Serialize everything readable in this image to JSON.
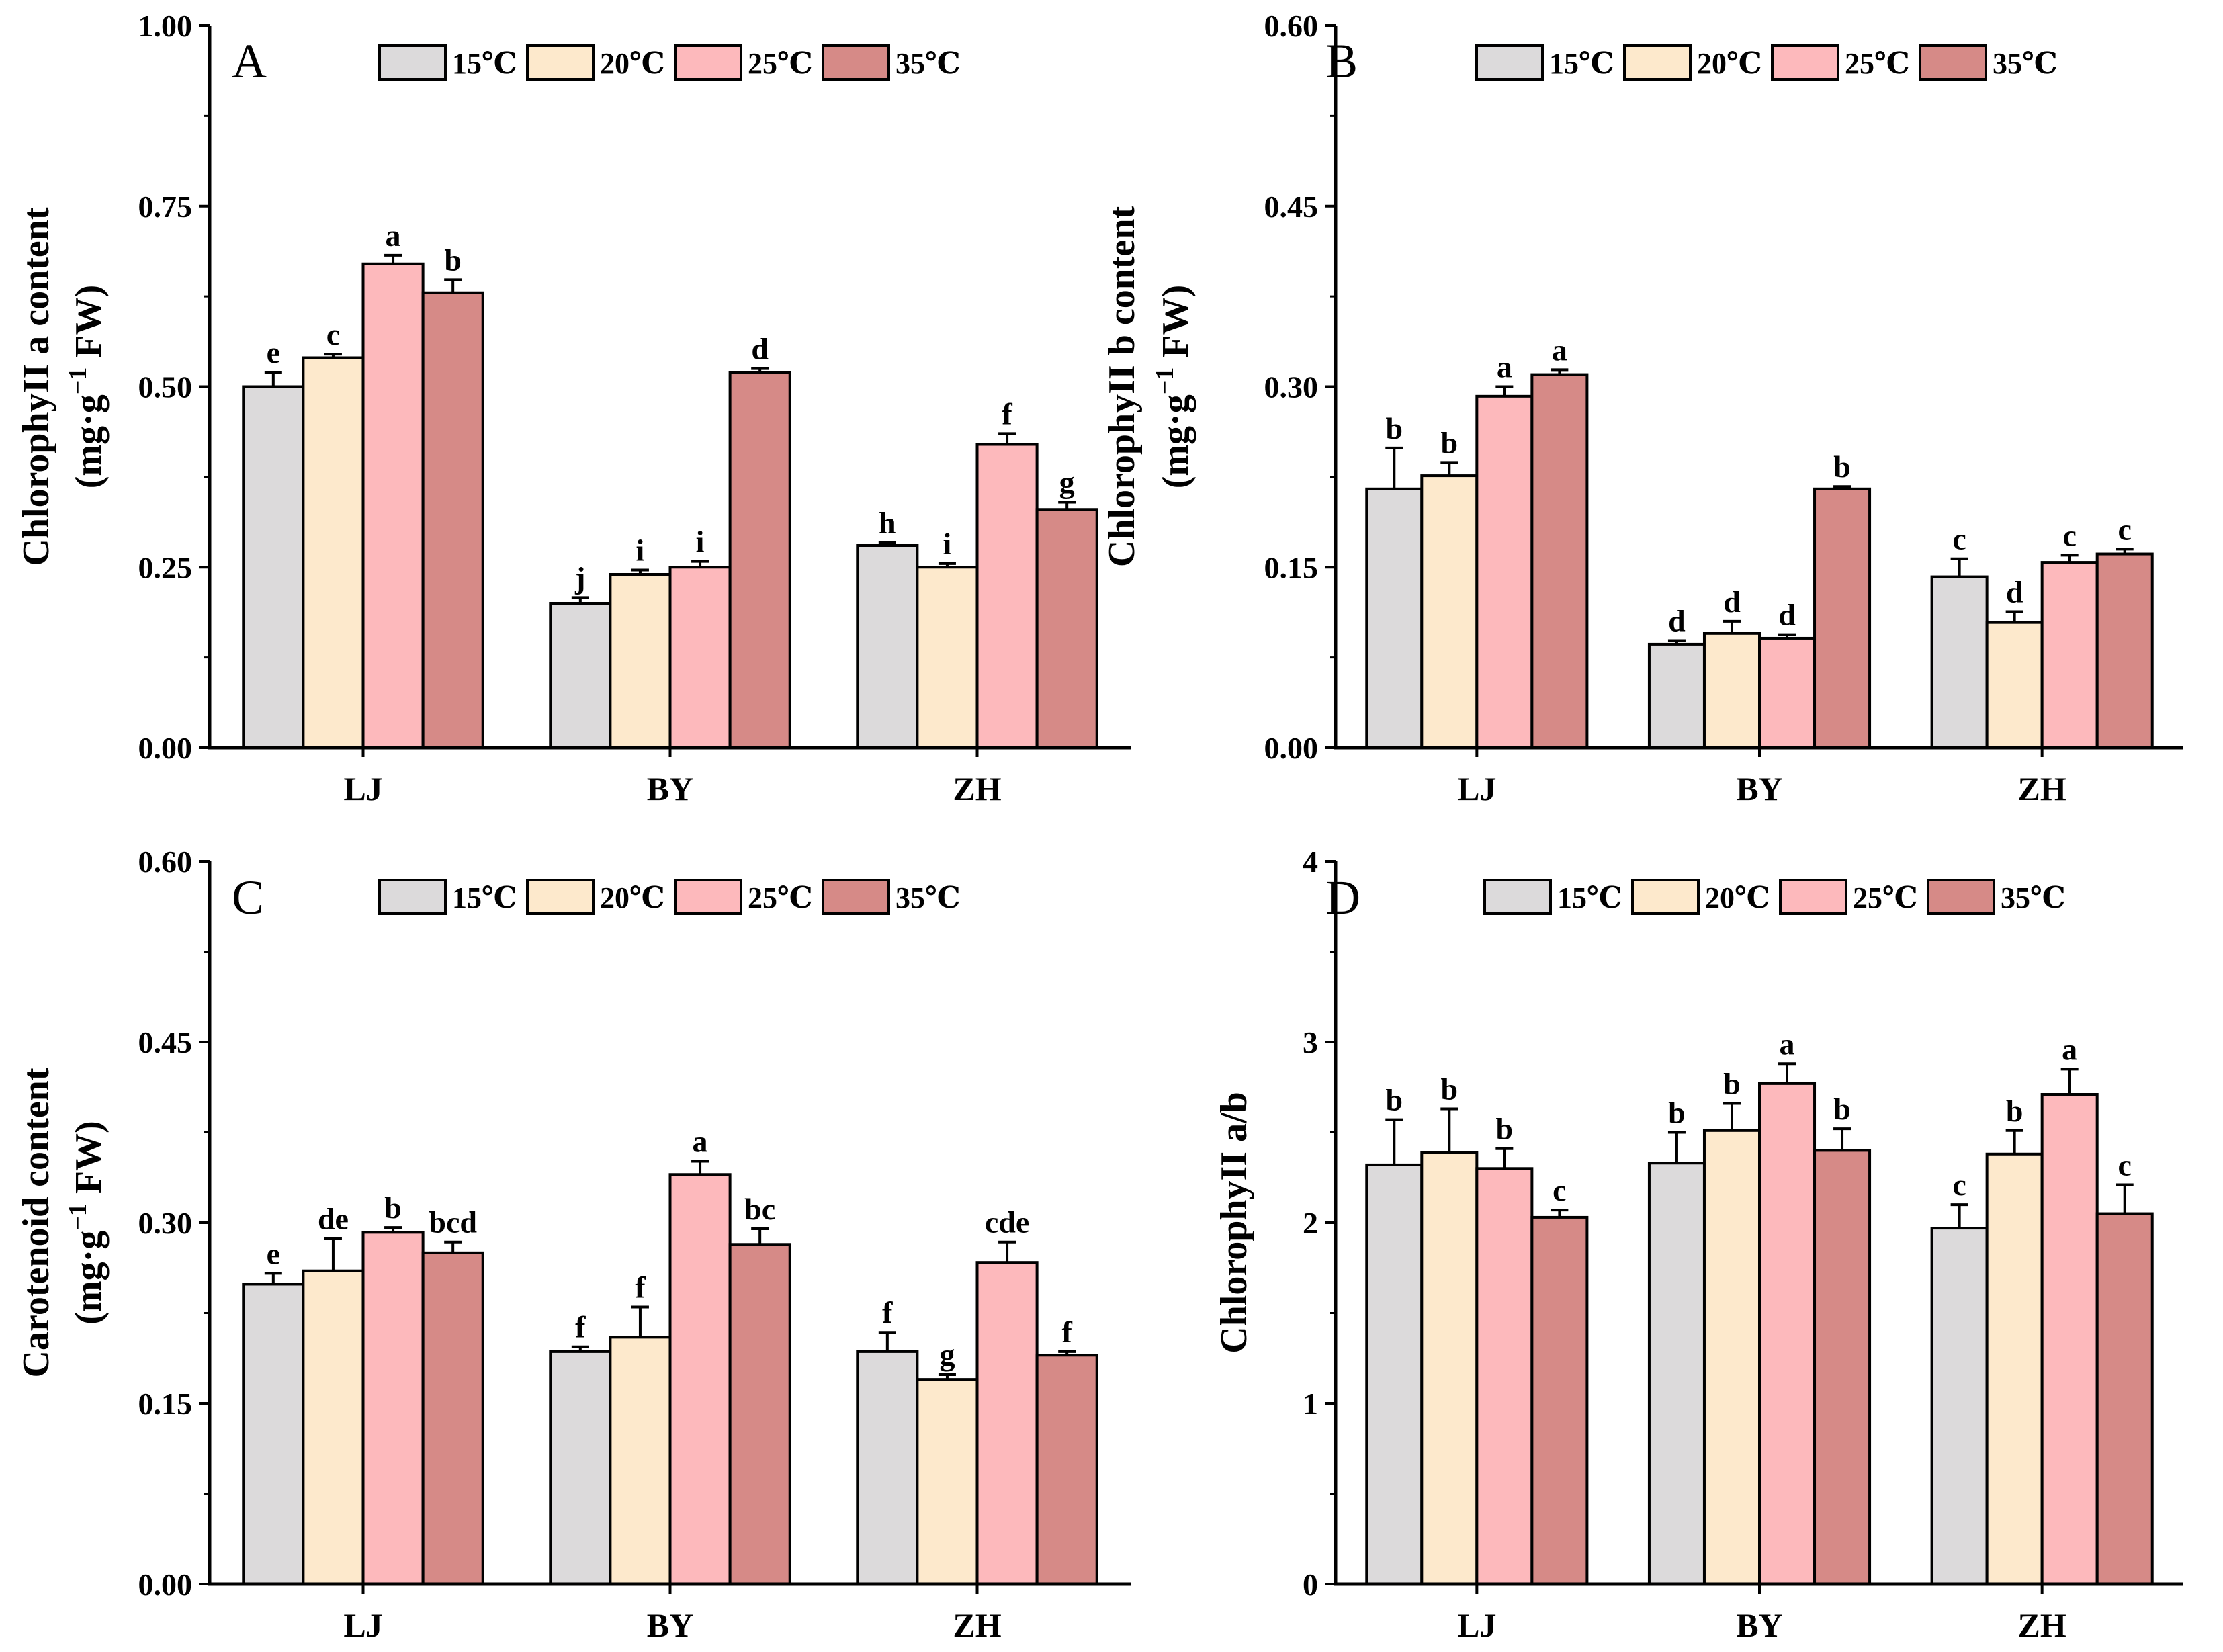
{
  "colors": [
    "#dcdadb",
    "#fde9cc",
    "#fdb9bc",
    "#d68a87"
  ],
  "chart_data": [
    {
      "type": "bar",
      "panel": "A",
      "ylabel_line1": "ChlorophyII a content",
      "ylabel_line2_prefix": "(mg·g",
      "ylabel_sup": "−1",
      "ylabel_line2_suffix": " FW)",
      "ylim": [
        0,
        1.0
      ],
      "yticks": [
        "0.00",
        "0.25",
        "0.50",
        "0.75",
        "1.00"
      ],
      "ytick_values": [
        0,
        0.25,
        0.5,
        0.75,
        1.0
      ],
      "categories": [
        "LJ",
        "BY",
        "ZH"
      ],
      "series": [
        {
          "name": "15℃",
          "values": [
            0.5,
            0.2,
            0.28
          ],
          "errors": [
            0.02,
            0.008,
            0.004
          ],
          "letters": [
            "e",
            "j",
            "h"
          ]
        },
        {
          "name": "20℃",
          "values": [
            0.54,
            0.24,
            0.25
          ],
          "errors": [
            0.005,
            0.006,
            0.005
          ],
          "letters": [
            "c",
            "i",
            "i"
          ]
        },
        {
          "name": "25℃",
          "values": [
            0.67,
            0.25,
            0.42
          ],
          "errors": [
            0.012,
            0.008,
            0.015
          ],
          "letters": [
            "a",
            "i",
            "f"
          ]
        },
        {
          "name": "35℃",
          "values": [
            0.63,
            0.52,
            0.33
          ],
          "errors": [
            0.018,
            0.005,
            0.01
          ],
          "letters": [
            "b",
            "d",
            "g"
          ]
        }
      ]
    },
    {
      "type": "bar",
      "panel": "B",
      "ylabel_line1": "ChlorophyII b content",
      "ylabel_line2_prefix": "(mg·g",
      "ylabel_sup": "−1",
      "ylabel_line2_suffix": " FW)",
      "ylim": [
        0,
        0.6
      ],
      "yticks": [
        "0.00",
        "0.15",
        "0.30",
        "0.45",
        "0.60"
      ],
      "ytick_values": [
        0,
        0.15,
        0.3,
        0.45,
        0.6
      ],
      "categories": [
        "LJ",
        "BY",
        "ZH"
      ],
      "series": [
        {
          "name": "15℃",
          "values": [
            0.215,
            0.086,
            0.142
          ],
          "errors": [
            0.034,
            0.003,
            0.015
          ],
          "letters": [
            "b",
            "d",
            "c"
          ]
        },
        {
          "name": "20℃",
          "values": [
            0.226,
            0.095,
            0.104
          ],
          "errors": [
            0.011,
            0.01,
            0.009
          ],
          "letters": [
            "b",
            "d",
            "d"
          ]
        },
        {
          "name": "25℃",
          "values": [
            0.292,
            0.091,
            0.154
          ],
          "errors": [
            0.008,
            0.003,
            0.006
          ],
          "letters": [
            "a",
            "d",
            "c"
          ]
        },
        {
          "name": "35℃",
          "values": [
            0.31,
            0.215,
            0.161
          ],
          "errors": [
            0.004,
            0.002,
            0.004
          ],
          "letters": [
            "a",
            "b",
            "c"
          ]
        }
      ]
    },
    {
      "type": "bar",
      "panel": "C",
      "ylabel_line1": "Carotenoid content",
      "ylabel_line2_prefix": "(mg·g",
      "ylabel_sup": "−1",
      "ylabel_line2_suffix": " FW)",
      "ylim": [
        0,
        0.6
      ],
      "yticks": [
        "0.00",
        "0.15",
        "0.30",
        "0.45",
        "0.60"
      ],
      "ytick_values": [
        0,
        0.15,
        0.3,
        0.45,
        0.6
      ],
      "categories": [
        "LJ",
        "BY",
        "ZH"
      ],
      "series": [
        {
          "name": "15℃",
          "values": [
            0.249,
            0.193,
            0.193
          ],
          "errors": [
            0.009,
            0.004,
            0.016
          ],
          "letters": [
            "e",
            "f",
            "f"
          ]
        },
        {
          "name": "20℃",
          "values": [
            0.26,
            0.205,
            0.17
          ],
          "errors": [
            0.027,
            0.025,
            0.004
          ],
          "letters": [
            "de",
            "f",
            "g"
          ]
        },
        {
          "name": "25℃",
          "values": [
            0.292,
            0.34,
            0.267
          ],
          "errors": [
            0.004,
            0.011,
            0.017
          ],
          "letters": [
            "b",
            "a",
            "cde"
          ]
        },
        {
          "name": "35℃",
          "values": [
            0.275,
            0.282,
            0.19
          ],
          "errors": [
            0.009,
            0.013,
            0.003
          ],
          "letters": [
            "bcd",
            "bc",
            "f"
          ]
        }
      ]
    },
    {
      "type": "bar",
      "panel": "D",
      "ylabel_line1": "ChlorophyII a/b",
      "ylim": [
        0,
        4
      ],
      "yticks": [
        "0",
        "1",
        "2",
        "3",
        "4"
      ],
      "ytick_values": [
        0,
        1,
        2,
        3,
        4
      ],
      "categories": [
        "LJ",
        "BY",
        "ZH"
      ],
      "series": [
        {
          "name": "15℃",
          "values": [
            2.32,
            2.33,
            1.97
          ],
          "errors": [
            0.25,
            0.17,
            0.13
          ],
          "letters": [
            "b",
            "b",
            "c"
          ]
        },
        {
          "name": "20℃",
          "values": [
            2.39,
            2.51,
            2.38
          ],
          "errors": [
            0.24,
            0.15,
            0.13
          ],
          "letters": [
            "b",
            "b",
            "b"
          ]
        },
        {
          "name": "25℃",
          "values": [
            2.3,
            2.77,
            2.71
          ],
          "errors": [
            0.11,
            0.11,
            0.14
          ],
          "letters": [
            "b",
            "a",
            "a"
          ]
        },
        {
          "name": "35℃",
          "values": [
            2.03,
            2.4,
            2.05
          ],
          "errors": [
            0.04,
            0.12,
            0.16
          ],
          "letters": [
            "c",
            "b",
            "c"
          ]
        }
      ]
    }
  ]
}
